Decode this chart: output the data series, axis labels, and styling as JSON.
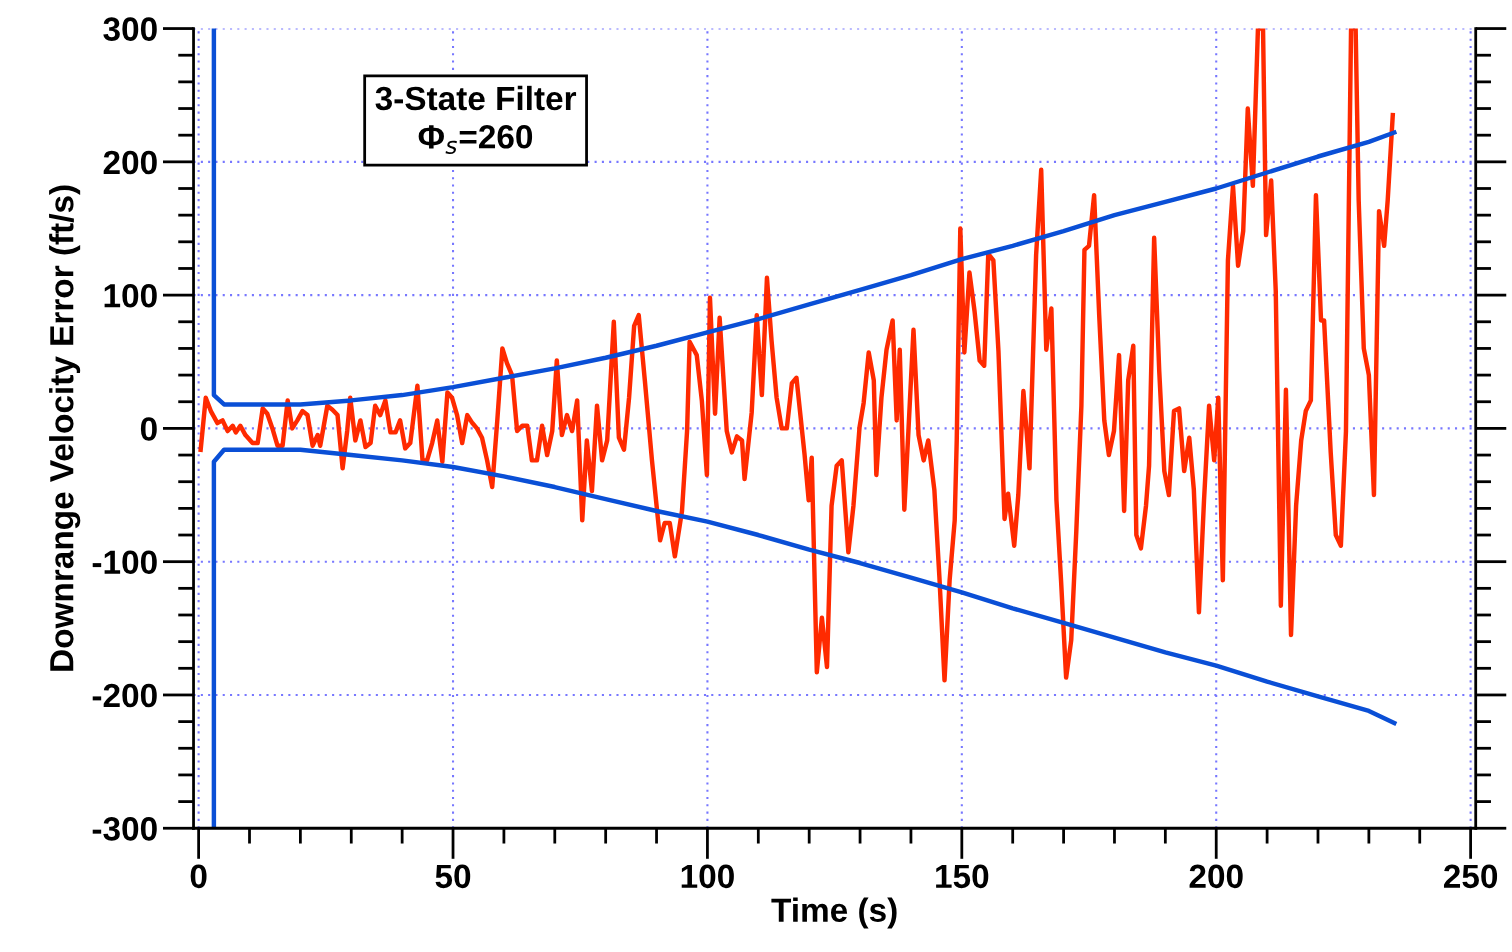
{
  "chart_data": {
    "type": "line",
    "xlabel": "Time (s)",
    "ylabel": "Downrange Velocity Error (ft/s)",
    "annotations": [
      "3-State Filter\nΦ$_{s}$=260"
    ],
    "xlim": [
      -1,
      251
    ],
    "ylim": [
      -300,
      300
    ],
    "xticks": [
      0,
      50,
      100,
      150,
      200,
      250
    ],
    "yticks": [
      -300,
      -200,
      -100,
      0,
      100,
      200,
      300
    ],
    "grid": true,
    "line_style": "solid",
    "marker": "none",
    "series": [
      {
        "color": "#ff2a00",
        "x": [
          0.4,
          1.4,
          2.4,
          3.7,
          4.7,
          5.7,
          6.7,
          7.3,
          8.2,
          9.2,
          10.6,
          11.6,
          12.6,
          13.5,
          14.5,
          15.5,
          16.5,
          17.5,
          18.4,
          19.4,
          20.4,
          21.4,
          22.4,
          23.4,
          23.9,
          25.3,
          26.3,
          27.3,
          28.3,
          29.2,
          29.8,
          30.8,
          31.8,
          32.8,
          33.8,
          34.7,
          35.7,
          36.7,
          37.7,
          38.7,
          39.6,
          40.6,
          41.6,
          43,
          44,
          44.9,
          45.9,
          46.9,
          47.9,
          48.9,
          49.8,
          50.8,
          51.8,
          52.8,
          53.8,
          54.7,
          55.7,
          56.7,
          57.7,
          58.7,
          59.7,
          60.6,
          61.6,
          62.6,
          63.6,
          64.6,
          65.5,
          66.5,
          67.5,
          68.5,
          69.5,
          70.4,
          71.4,
          72.4,
          73.4,
          74.4,
          75.4,
          76.3,
          77.3,
          78.3,
          79.3,
          80.3,
          81.6,
          82.6,
          83.6,
          84.6,
          85.6,
          86.5,
          87.7,
          89.1,
          90.7,
          91.6,
          92.6,
          93.6,
          95,
          96,
          96.5,
          97.9,
          98.9,
          99.9,
          100.5,
          101.5,
          102.4,
          103.8,
          104.8,
          105.8,
          106.8,
          107.3,
          108.7,
          109.7,
          110.7,
          111.7,
          112.6,
          113.6,
          114.6,
          115.6,
          116.6,
          117.5,
          119.1,
          119.9,
          120.5,
          121.5,
          122.5,
          123.5,
          124.4,
          125.4,
          126.4,
          127.7,
          128.7,
          129.9,
          130.7,
          131.7,
          132.7,
          133.2,
          134.2,
          135.2,
          136.4,
          137.2,
          137.8,
          138.7,
          139.5,
          140.5,
          141.5,
          142.5,
          143.4,
          144.6,
          145.6,
          146.6,
          147.6,
          148.6,
          149,
          149.7,
          150.5,
          151.5,
          152.5,
          153.5,
          154.4,
          155.2,
          156.2,
          157.2,
          158.4,
          159.1,
          160.3,
          161.1,
          162.1,
          163.3,
          164.6,
          165.6,
          166.6,
          167.6,
          168.6,
          169.5,
          170.5,
          171.5,
          172.5,
          173.5,
          174.1,
          175,
          176,
          177,
          178,
          178.9,
          179.9,
          180.9,
          181.9,
          182.7,
          183.7,
          184.3,
          185.2,
          186.2,
          186.8,
          187.8,
          188.8,
          189.8,
          190.7,
          191.7,
          192.7,
          193.7,
          194.7,
          195.6,
          196.6,
          197.6,
          198.6,
          199.6,
          200.4,
          201.3,
          202.3,
          203.3,
          204.3,
          205.3,
          206.2,
          207.2,
          208.2,
          209.2,
          209.8,
          210.8,
          211.7,
          212.7,
          213.7,
          214.7,
          215.7,
          216.7,
          217.6,
          218.6,
          219.6,
          220.6,
          221.2,
          222.5,
          223.5,
          224.5,
          225.5,
          226.5,
          227.4,
          228,
          229,
          230,
          231,
          232,
          233,
          233.7,
          234.7
        ],
        "values": [
          -16,
          23,
          13,
          4,
          6,
          -2,
          2,
          -3,
          2,
          -5,
          -11,
          -11,
          15,
          11,
          0,
          -13,
          -13,
          21,
          0,
          6,
          13,
          10,
          -13,
          -5,
          -13,
          17,
          14,
          10,
          -30,
          -2,
          23,
          -9,
          6,
          -14,
          -11,
          17,
          10,
          21,
          -3,
          -3,
          6,
          -15,
          -11,
          32,
          -24,
          -24,
          -11,
          6,
          -25,
          27,
          23,
          10,
          -11,
          10,
          4,
          0,
          -7,
          -24,
          -44,
          6,
          60,
          49,
          40,
          -2,
          2,
          2,
          -24,
          -24,
          2,
          -20,
          -2,
          51,
          -5,
          10,
          -2,
          21,
          -69,
          -9,
          -47,
          17,
          -24,
          -9,
          80,
          -7,
          -16,
          23,
          77,
          85,
          36,
          -24,
          -84,
          -71,
          -71,
          -96,
          -62,
          -2,
          65,
          55,
          21,
          -35,
          98,
          11,
          83,
          -2,
          -18,
          -6,
          -9,
          -38,
          12,
          85,
          25,
          113,
          66,
          23,
          0,
          0,
          34,
          38,
          -20,
          -54,
          -22,
          -183,
          -142,
          -179,
          -58,
          -28,
          -24,
          -93,
          -58,
          1,
          19,
          57,
          36,
          -35,
          23,
          59,
          81,
          6,
          59,
          -61,
          -2,
          74,
          -5,
          -24,
          -9,
          -46,
          -112,
          -189,
          -114,
          -69,
          -9,
          150,
          57,
          117,
          88,
          51,
          47,
          131,
          126,
          58,
          -68,
          -49,
          -88,
          -50,
          28,
          -30,
          130,
          194,
          59,
          90,
          -54,
          -114,
          -187,
          -159,
          -77,
          17,
          134,
          137,
          175,
          85,
          6,
          -20,
          -2,
          55,
          -62,
          36,
          62,
          -80,
          -90,
          -58,
          -28,
          143,
          43,
          -32,
          -50,
          13,
          15,
          -32,
          -7,
          -46,
          -138,
          -54,
          17,
          -24,
          23,
          -114,
          126,
          182,
          122,
          148,
          240,
          182,
          300,
          300,
          145,
          186,
          103,
          -133,
          29,
          -155,
          -58,
          -9,
          13,
          21,
          175,
          81,
          81,
          -18,
          -80,
          -88,
          -2,
          300,
          300,
          171,
          60,
          40,
          -50,
          163,
          137,
          171,
          235
        ]
      },
      {
        "color": "#0a4fd6",
        "x": [
          3,
          3,
          5,
          20,
          30,
          40,
          50,
          60,
          70,
          80,
          90,
          100,
          110,
          120,
          130,
          140,
          150,
          160,
          170,
          180,
          190,
          200,
          210,
          220,
          230,
          235
        ],
        "values": [
          300,
          25,
          18,
          18,
          21,
          25,
          31,
          38,
          45,
          53,
          62,
          72,
          82,
          93,
          104,
          115,
          127,
          137,
          148,
          160,
          170,
          180,
          192,
          204,
          215,
          222
        ]
      },
      {
        "color": "#0a4fd6",
        "x": [
          3,
          3,
          5,
          20,
          30,
          40,
          50,
          60,
          70,
          80,
          90,
          100,
          110,
          120,
          130,
          140,
          150,
          160,
          170,
          180,
          190,
          200,
          210,
          220,
          230,
          235
        ],
        "values": [
          -300,
          -25,
          -16,
          -16,
          -20,
          -24,
          -29,
          -36,
          -44,
          -53,
          -62,
          -70,
          -80,
          -91,
          -101,
          -112,
          -123,
          -135,
          -146,
          -157,
          -168,
          -178,
          -190,
          -201,
          -212,
          -221
        ]
      }
    ]
  }
}
